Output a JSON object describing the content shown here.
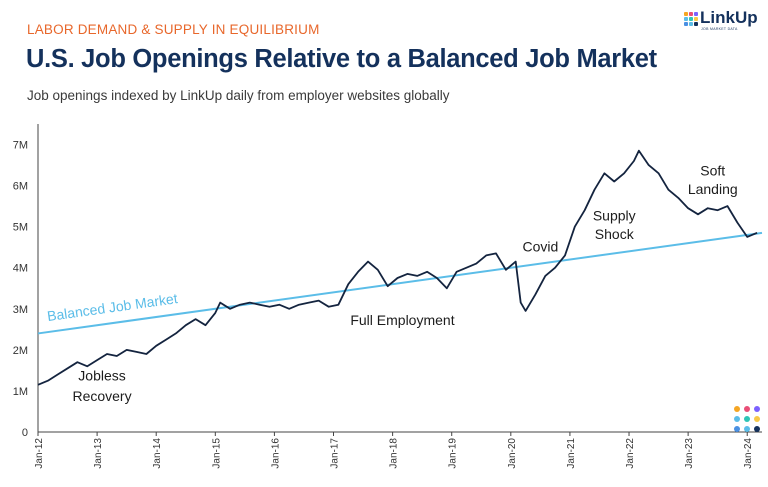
{
  "header": {
    "kicker": "LABOR DEMAND & SUPPLY IN EQUILIBRIUM",
    "title": "U.S. Job Openings Relative to a Balanced Job Market",
    "subtitle": "Job openings indexed by LinkUp daily from employer websites globally"
  },
  "logo": {
    "word": "LinkUp",
    "tagline": "JOB MARKET DATA"
  },
  "colors": {
    "kicker": "#e8672b",
    "title": "#14315c",
    "openings_line": "#14243f",
    "balanced_line": "#5bbde8",
    "dot_palette": [
      "#f5a623",
      "#e94e77",
      "#7b61ff",
      "#5bbde8",
      "#2ec4b6",
      "#f7c948",
      "#4a90e2",
      "#5bbde8",
      "#14315c"
    ]
  },
  "chart_data": {
    "type": "line",
    "title": "U.S. Job Openings Relative to a Balanced Job Market",
    "xlabel": "",
    "ylabel": "",
    "ylim": [
      0,
      7500000
    ],
    "yticks": [
      0,
      1000000,
      2000000,
      3000000,
      4000000,
      5000000,
      6000000,
      7000000
    ],
    "ytick_labels": [
      "0",
      "1M",
      "2M",
      "3M",
      "4M",
      "5M",
      "6M",
      "7M"
    ],
    "xlim": [
      "2012-01",
      "2024-04"
    ],
    "xtick_labels": [
      "Jan-12",
      "Jan-13",
      "Jan-14",
      "Jan-15",
      "Jan-16",
      "Jan-17",
      "Jan-18",
      "Jan-19",
      "Jan-20",
      "Jan-21",
      "Jan-22",
      "Jan-23",
      "Jan-24"
    ],
    "grid": false,
    "series": [
      {
        "name": "",
        "points": [
          [
            "2012-01",
            1150000
          ],
          [
            "2012-03",
            1250000
          ],
          [
            "2012-05",
            1400000
          ],
          [
            "2012-07",
            1550000
          ],
          [
            "2012-09",
            1700000
          ],
          [
            "2012-11",
            1600000
          ],
          [
            "2013-01",
            1750000
          ],
          [
            "2013-03",
            1900000
          ],
          [
            "2013-05",
            1850000
          ],
          [
            "2013-07",
            2000000
          ],
          [
            "2013-09",
            1950000
          ],
          [
            "2013-11",
            1900000
          ],
          [
            "2014-01",
            2100000
          ],
          [
            "2014-03",
            2250000
          ],
          [
            "2014-05",
            2400000
          ],
          [
            "2014-07",
            2600000
          ],
          [
            "2014-09",
            2750000
          ],
          [
            "2014-11",
            2600000
          ],
          [
            "2015-01",
            2900000
          ],
          [
            "2015-02",
            3150000
          ],
          [
            "2015-04",
            3000000
          ],
          [
            "2015-06",
            3100000
          ],
          [
            "2015-08",
            3150000
          ],
          [
            "2015-10",
            3100000
          ],
          [
            "2015-12",
            3050000
          ],
          [
            "2016-02",
            3100000
          ],
          [
            "2016-04",
            3000000
          ],
          [
            "2016-06",
            3100000
          ],
          [
            "2016-08",
            3150000
          ],
          [
            "2016-10",
            3200000
          ],
          [
            "2016-12",
            3050000
          ],
          [
            "2017-02",
            3100000
          ],
          [
            "2017-04",
            3600000
          ],
          [
            "2017-06",
            3900000
          ],
          [
            "2017-08",
            4150000
          ],
          [
            "2017-10",
            3950000
          ],
          [
            "2017-12",
            3550000
          ],
          [
            "2018-02",
            3750000
          ],
          [
            "2018-04",
            3850000
          ],
          [
            "2018-06",
            3800000
          ],
          [
            "2018-08",
            3900000
          ],
          [
            "2018-10",
            3750000
          ],
          [
            "2018-12",
            3500000
          ],
          [
            "2019-02",
            3900000
          ],
          [
            "2019-04",
            4000000
          ],
          [
            "2019-06",
            4100000
          ],
          [
            "2019-08",
            4300000
          ],
          [
            "2019-10",
            4350000
          ],
          [
            "2019-12",
            3950000
          ],
          [
            "2020-02",
            4150000
          ],
          [
            "2020-03",
            3150000
          ],
          [
            "2020-04",
            2950000
          ],
          [
            "2020-06",
            3350000
          ],
          [
            "2020-08",
            3800000
          ],
          [
            "2020-10",
            4000000
          ],
          [
            "2020-12",
            4300000
          ],
          [
            "2021-02",
            5000000
          ],
          [
            "2021-04",
            5400000
          ],
          [
            "2021-06",
            5900000
          ],
          [
            "2021-08",
            6300000
          ],
          [
            "2021-10",
            6100000
          ],
          [
            "2021-12",
            6300000
          ],
          [
            "2022-02",
            6600000
          ],
          [
            "2022-03",
            6850000
          ],
          [
            "2022-05",
            6500000
          ],
          [
            "2022-07",
            6300000
          ],
          [
            "2022-09",
            5900000
          ],
          [
            "2022-11",
            5700000
          ],
          [
            "2023-01",
            5450000
          ],
          [
            "2023-03",
            5300000
          ],
          [
            "2023-05",
            5450000
          ],
          [
            "2023-07",
            5400000
          ],
          [
            "2023-09",
            5500000
          ],
          [
            "2023-11",
            5100000
          ],
          [
            "2024-01",
            4750000
          ],
          [
            "2024-03",
            4850000
          ]
        ]
      },
      {
        "name": "Balanced Job Market",
        "points": [
          [
            "2012-01",
            2400000
          ],
          [
            "2024-04",
            4850000
          ]
        ]
      }
    ],
    "annotations": [
      {
        "text": "Jobless",
        "x": "2013-02",
        "y": 1250000
      },
      {
        "text": "Recovery",
        "x": "2013-02",
        "y": 750000
      },
      {
        "text": "Full Employment",
        "x": "2018-03",
        "y": 2600000
      },
      {
        "text": "Covid",
        "x": "2020-07",
        "y": 4400000
      },
      {
        "text": "Supply",
        "x": "2021-10",
        "y": 5150000
      },
      {
        "text": "Shock",
        "x": "2021-10",
        "y": 4700000
      },
      {
        "text": "Soft",
        "x": "2023-06",
        "y": 6250000
      },
      {
        "text": "Landing",
        "x": "2023-06",
        "y": 5800000
      }
    ]
  }
}
